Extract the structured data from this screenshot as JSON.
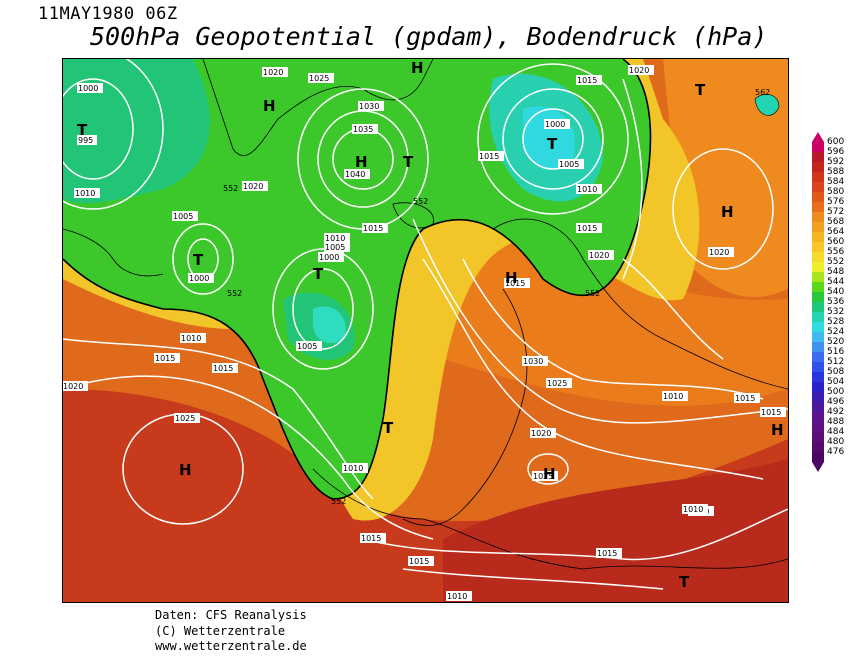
{
  "header": {
    "datetime": "11MAY1980 06Z",
    "title": "500hPa Geopotential (gpdam), Bodendruck (hPa)"
  },
  "colorbar": {
    "labels": [
      "600",
      "596",
      "592",
      "588",
      "584",
      "580",
      "576",
      "572",
      "568",
      "564",
      "560",
      "556",
      "552",
      "548",
      "544",
      "540",
      "536",
      "532",
      "528",
      "524",
      "520",
      "516",
      "512",
      "508",
      "504",
      "500",
      "496",
      "492",
      "488",
      "484",
      "480",
      "476"
    ],
    "colors": [
      "#cc0066",
      "#b81a2a",
      "#c4251c",
      "#d0341a",
      "#d9451c",
      "#e05a1c",
      "#e8701c",
      "#ee8a1e",
      "#f2a020",
      "#f5b522",
      "#f7c828",
      "#f5dc2a",
      "#f0ee2a",
      "#a8e41e",
      "#5cd81c",
      "#28c83c",
      "#1cc87a",
      "#22d4b0",
      "#30dce0",
      "#40b8f0",
      "#4090f0",
      "#3c6cf0",
      "#3050e8",
      "#2a34e0",
      "#2a22c8",
      "#3a1cb0",
      "#4c18a0",
      "#5a1490",
      "#5e1084",
      "#5c0c78",
      "#540a6c",
      "#4a0860"
    ]
  },
  "map": {
    "contour_labels": [
      "1000",
      "995",
      "1010",
      "1005",
      "1000",
      "1010",
      "1015",
      "1020",
      "1025",
      "1025",
      "1030",
      "1035",
      "1040",
      "1020",
      "1015",
      "1010",
      "1005",
      "1000",
      "1005",
      "1000",
      "1015",
      "1020",
      "1015",
      "1010",
      "1005",
      "1020",
      "1015",
      "1010",
      "1020",
      "1025",
      "1030",
      "1025",
      "1020",
      "1015",
      "1010",
      "1015",
      "1015",
      "1010",
      "1015",
      "1020",
      "1015",
      "1015",
      "1015",
      "1010",
      "1010"
    ],
    "contour_552": "552",
    "centers": [
      {
        "letter": "T"
      },
      {
        "letter": "H"
      },
      {
        "letter": "H"
      },
      {
        "letter": "T"
      },
      {
        "letter": "H"
      },
      {
        "letter": "T"
      },
      {
        "letter": "T"
      },
      {
        "letter": "T"
      },
      {
        "letter": "T"
      },
      {
        "letter": "H"
      },
      {
        "letter": "T"
      },
      {
        "letter": "H"
      },
      {
        "letter": "H"
      },
      {
        "letter": "H"
      },
      {
        "letter": "H"
      },
      {
        "letter": "T"
      },
      {
        "letter": "T"
      }
    ],
    "small_contour_label": "562"
  },
  "credits": {
    "line1": "Daten: CFS Reanalysis",
    "line2": "(C) Wetterzentrale",
    "line3": "www.wetterzentrale.de"
  }
}
